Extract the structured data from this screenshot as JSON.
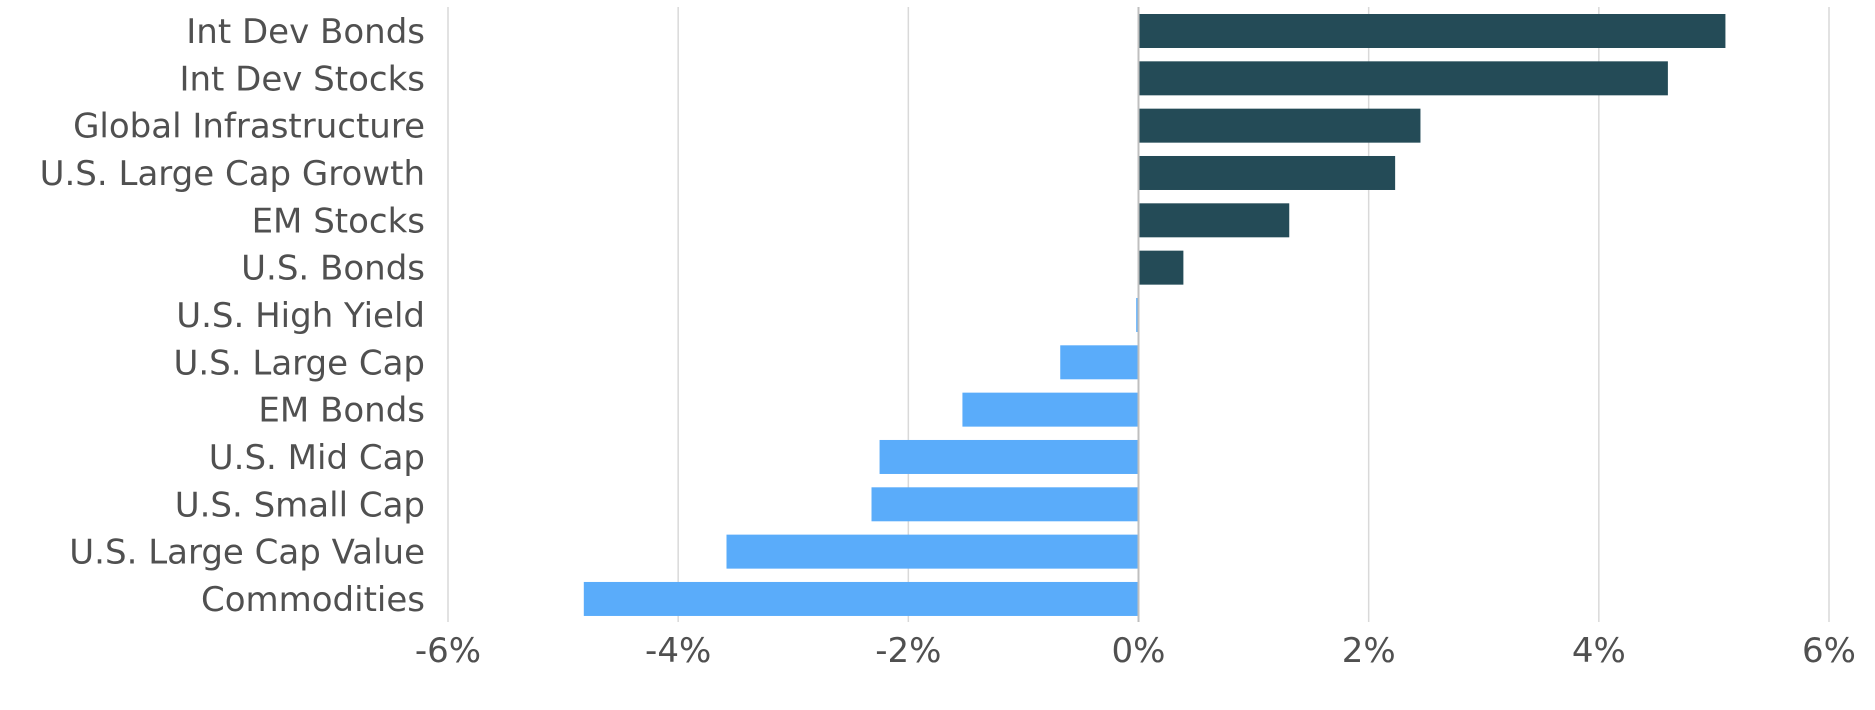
{
  "chart_data": {
    "type": "bar",
    "orientation": "horizontal",
    "categories": [
      "Int Dev Bonds",
      "Int Dev Stocks",
      "Global Infrastructure",
      "U.S. Large Cap Growth",
      "EM Stocks",
      "U.S. Bonds",
      "U.S. High Yield",
      "U.S. Large Cap",
      "EM Bonds",
      "U.S. Mid Cap",
      "U.S. Small Cap",
      "U.S. Large Cap Value",
      "Commodities"
    ],
    "values": [
      5.1,
      4.6,
      2.45,
      2.23,
      1.31,
      0.39,
      -0.02,
      -0.68,
      -1.53,
      -2.25,
      -2.32,
      -3.58,
      -4.82
    ],
    "title": "",
    "xlabel": "",
    "ylabel": "",
    "xlim": [
      -6,
      6
    ],
    "x_ticks": [
      -6,
      -4,
      -2,
      0,
      2,
      4,
      6
    ],
    "x_tick_labels": [
      "-6%",
      "-4%",
      "-2%",
      "0%",
      "2%",
      "4%",
      "6%"
    ],
    "gridlines": "vertical",
    "legend": "none",
    "colors": {
      "positive": "#244b57",
      "negative": "#5aacfa"
    }
  }
}
